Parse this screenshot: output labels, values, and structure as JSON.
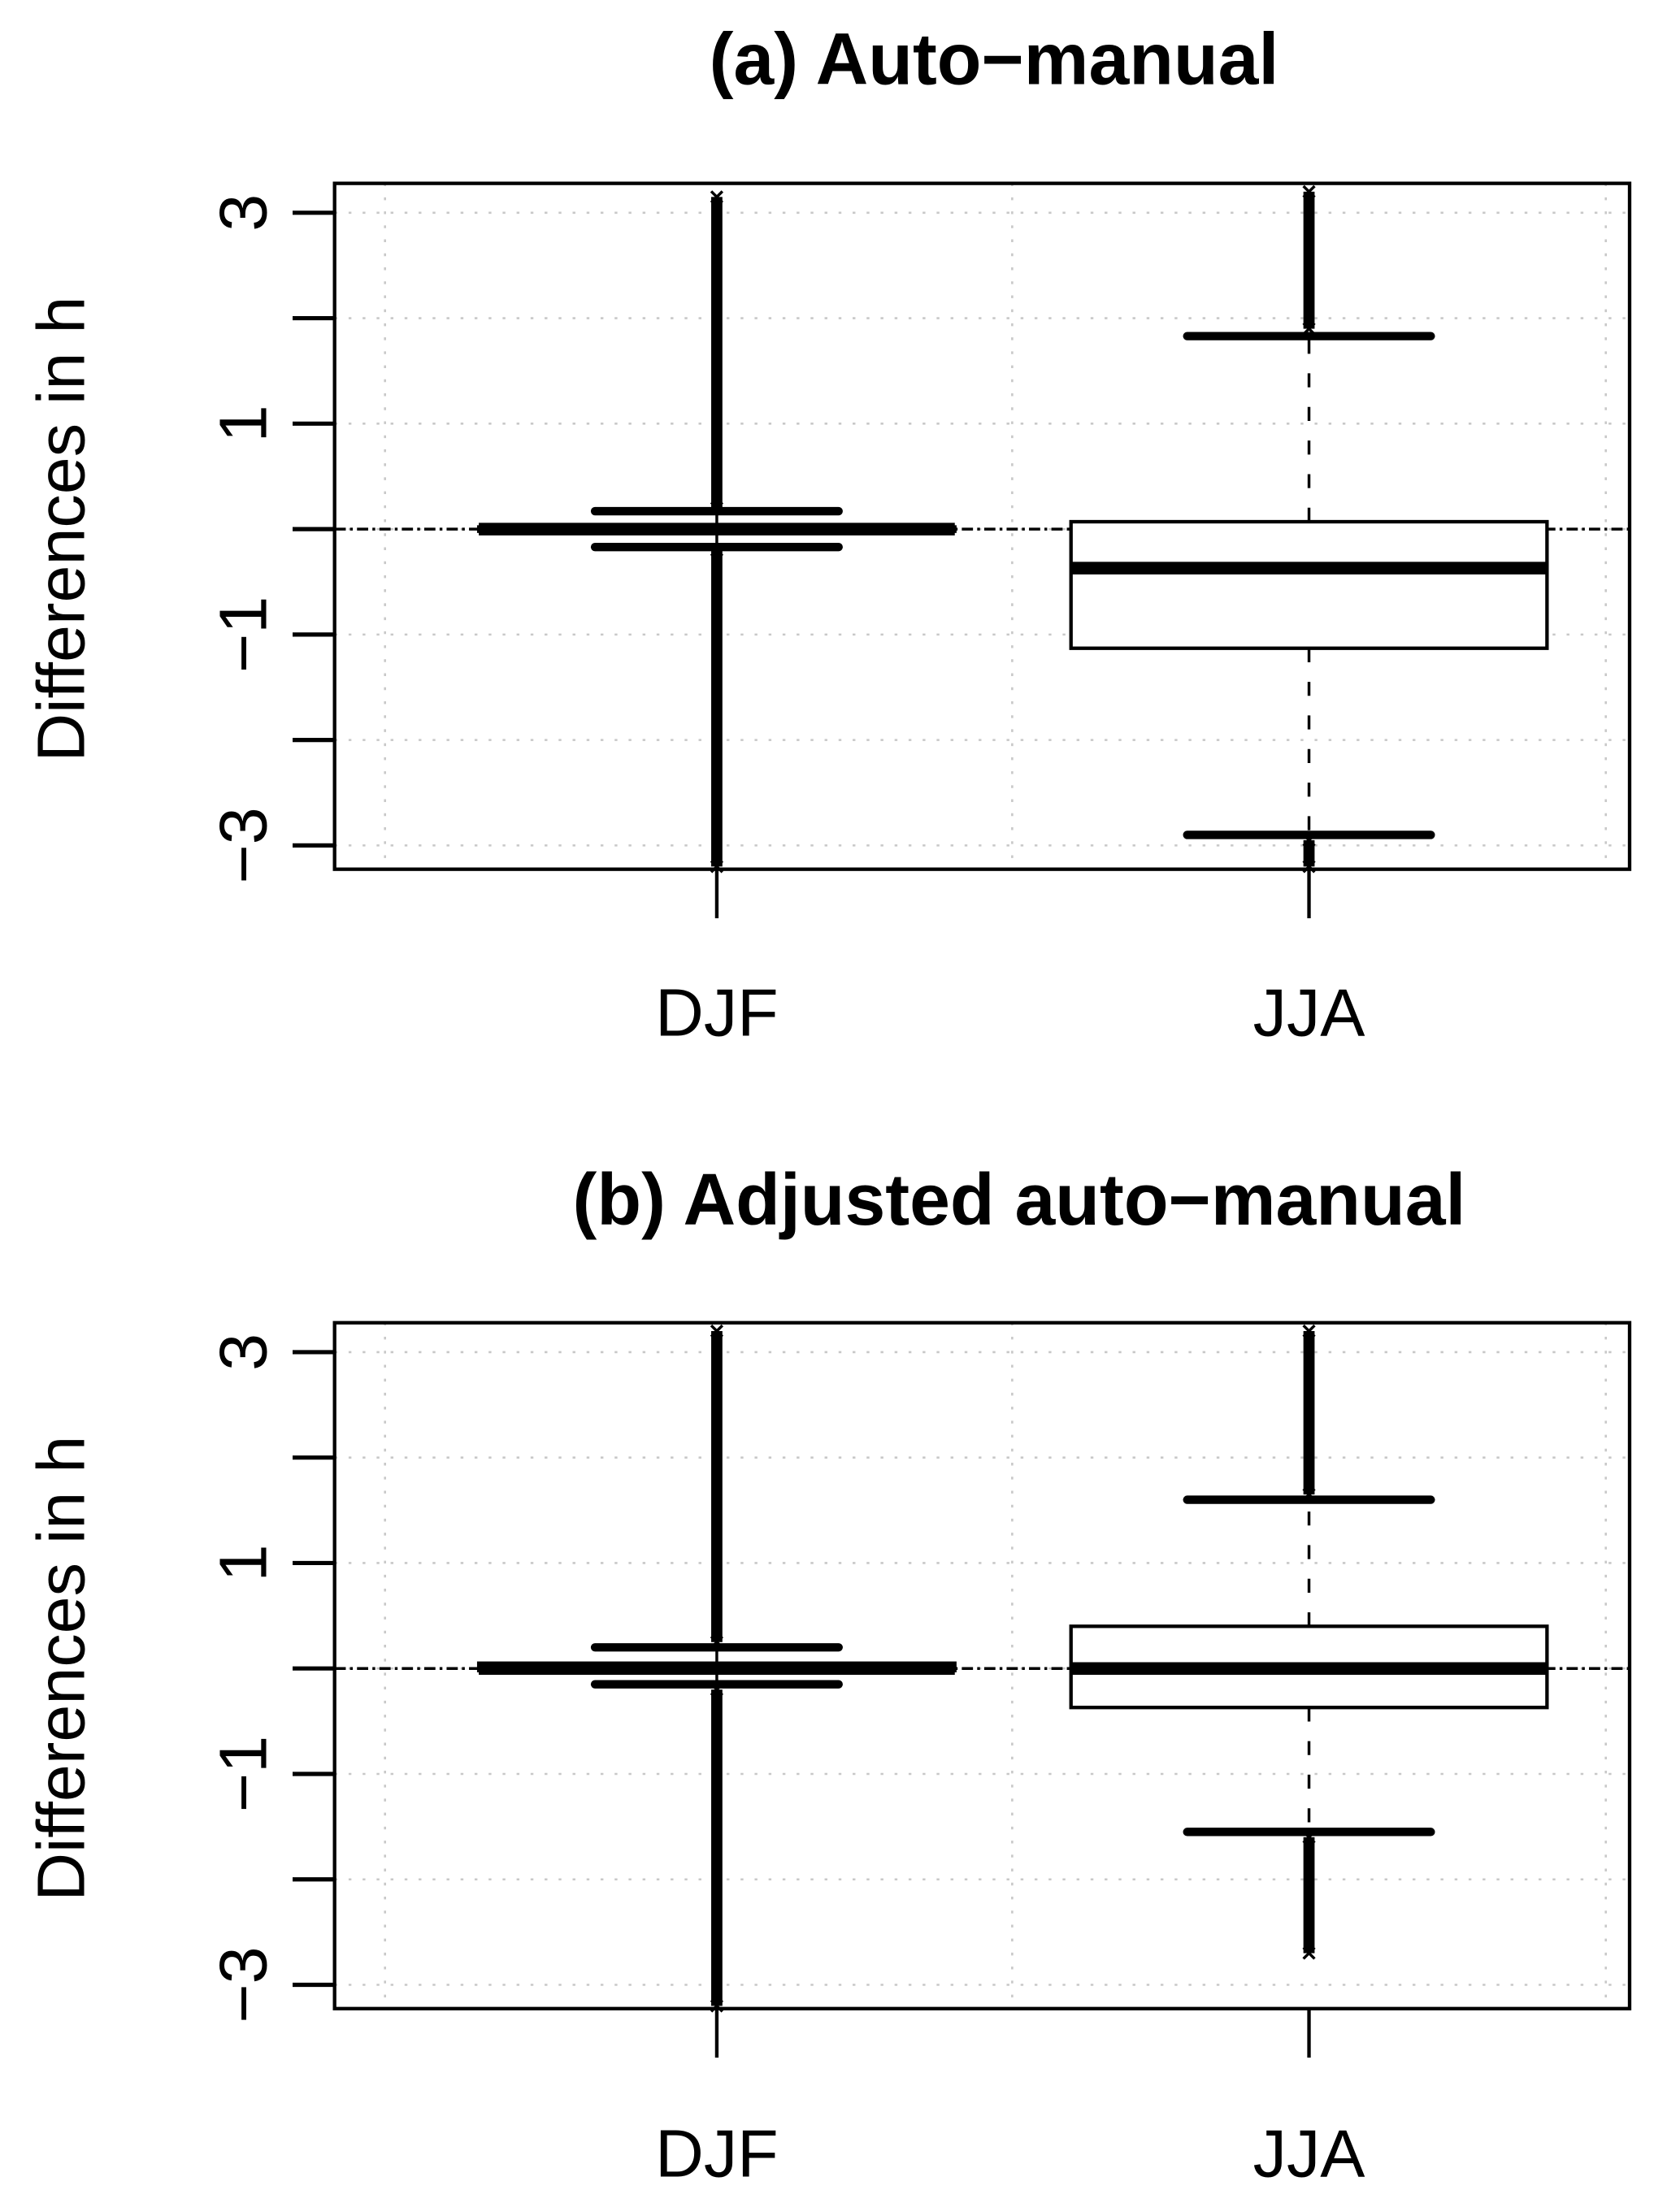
{
  "chart_data": [
    {
      "type": "box",
      "title": "(a) Auto−manual",
      "ylabel": "Differences in h",
      "ylim": [
        -3.3,
        3.3
      ],
      "yticks": [
        -3,
        -2,
        -1,
        0,
        1,
        2,
        3
      ],
      "ytick_labels": [
        "−3",
        "",
        "−1",
        "",
        "1",
        "",
        "3"
      ],
      "categories": [
        "DJF",
        "JJA"
      ],
      "grid": true,
      "reference_line": 0,
      "boxes": [
        {
          "category": "DJF",
          "whisker_low": -0.17,
          "q1": -0.02,
          "median": 0,
          "q3": 0.02,
          "whisker_high": 0.17,
          "outliers_low": [
            -3.2,
            -0.2
          ],
          "outliers_high": [
            0.2,
            3.15
          ]
        },
        {
          "category": "JJA",
          "whisker_low": -2.9,
          "q1": -1.13,
          "median": -0.37,
          "q3": 0.07,
          "whisker_high": 1.83,
          "outliers_low": [
            -3.2,
            -2.95
          ],
          "outliers_high": [
            1.9,
            3.2
          ]
        }
      ]
    },
    {
      "type": "box",
      "title": "(b) Adjusted auto−manual",
      "ylabel": "Differences in h",
      "ylim": [
        -3.3,
        3.3
      ],
      "yticks": [
        -3,
        -2,
        -1,
        0,
        1,
        2,
        3
      ],
      "ytick_labels": [
        "−3",
        "",
        "−1",
        "",
        "1",
        "",
        "3"
      ],
      "categories": [
        "DJF",
        "JJA"
      ],
      "grid": true,
      "reference_line": 0,
      "boxes": [
        {
          "category": "DJF",
          "whisker_low": -0.15,
          "q1": -0.02,
          "median": 0,
          "q3": 0.05,
          "whisker_high": 0.2,
          "outliers_low": [
            -3.2,
            -0.2
          ],
          "outliers_high": [
            0.25,
            3.2
          ]
        },
        {
          "category": "JJA",
          "whisker_low": -1.55,
          "q1": -0.37,
          "median": 0,
          "q3": 0.4,
          "whisker_high": 1.6,
          "outliers_low": [
            -2.7,
            -1.6
          ],
          "outliers_high": [
            1.65,
            3.2
          ]
        }
      ]
    }
  ]
}
